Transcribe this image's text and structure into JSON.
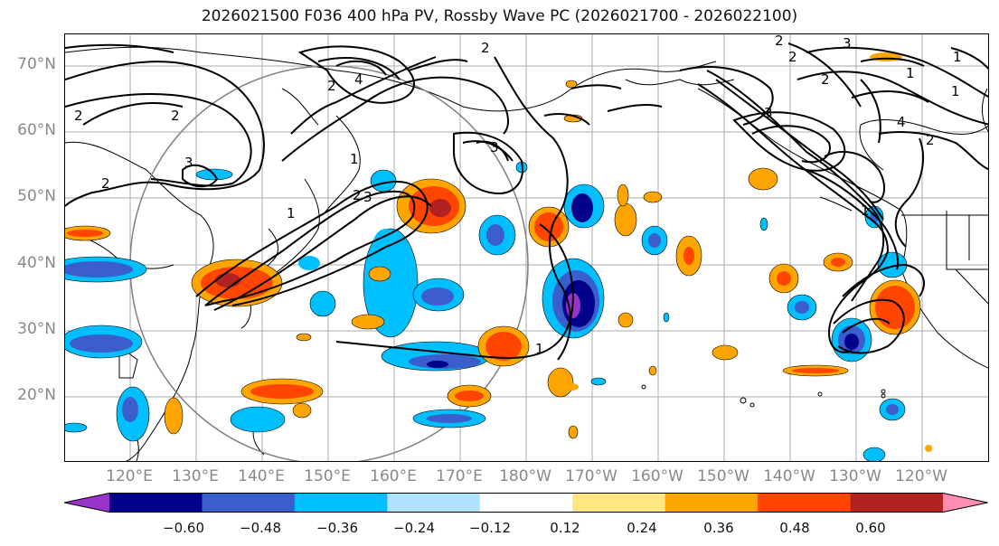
{
  "title": "2026021500 F036 400 hPa PV, Rossby Wave PC (2026021700 - 2026022100)",
  "lat_labels": [
    "70°N",
    "60°N",
    "50°N",
    "40°N",
    "30°N",
    "20°N"
  ],
  "lon_labels": [
    "120°E",
    "130°E",
    "140°E",
    "150°E",
    "160°E",
    "170°E",
    "180°W",
    "170°W",
    "160°W",
    "150°W",
    "140°W",
    "130°W",
    "120°W"
  ],
  "colorbar": {
    "colors": [
      "#9933cc",
      "#00008b",
      "#3a5fcd",
      "#00bfff",
      "#b0e2ff",
      "#ffffff",
      "#ffe680",
      "#ffa500",
      "#ff4500",
      "#b22222",
      "#ff8cb3"
    ],
    "tick_labels": [
      "−0.60",
      "−0.48",
      "−0.36",
      "−0.24",
      "−0.12",
      "0.12",
      "0.24",
      "0.36",
      "0.48",
      "0.60"
    ]
  },
  "contour_labels": [
    "2",
    "2",
    "3",
    "2",
    "1",
    "2",
    "3",
    "4",
    "2",
    "1",
    "2",
    "3",
    "1",
    "2",
    "3",
    "2",
    "2",
    "4",
    "3",
    "2",
    "1",
    "1",
    "1",
    "1"
  ],
  "legend": {
    "pos_color": "#ff4500",
    "neg_color": "#3a5fcd"
  }
}
